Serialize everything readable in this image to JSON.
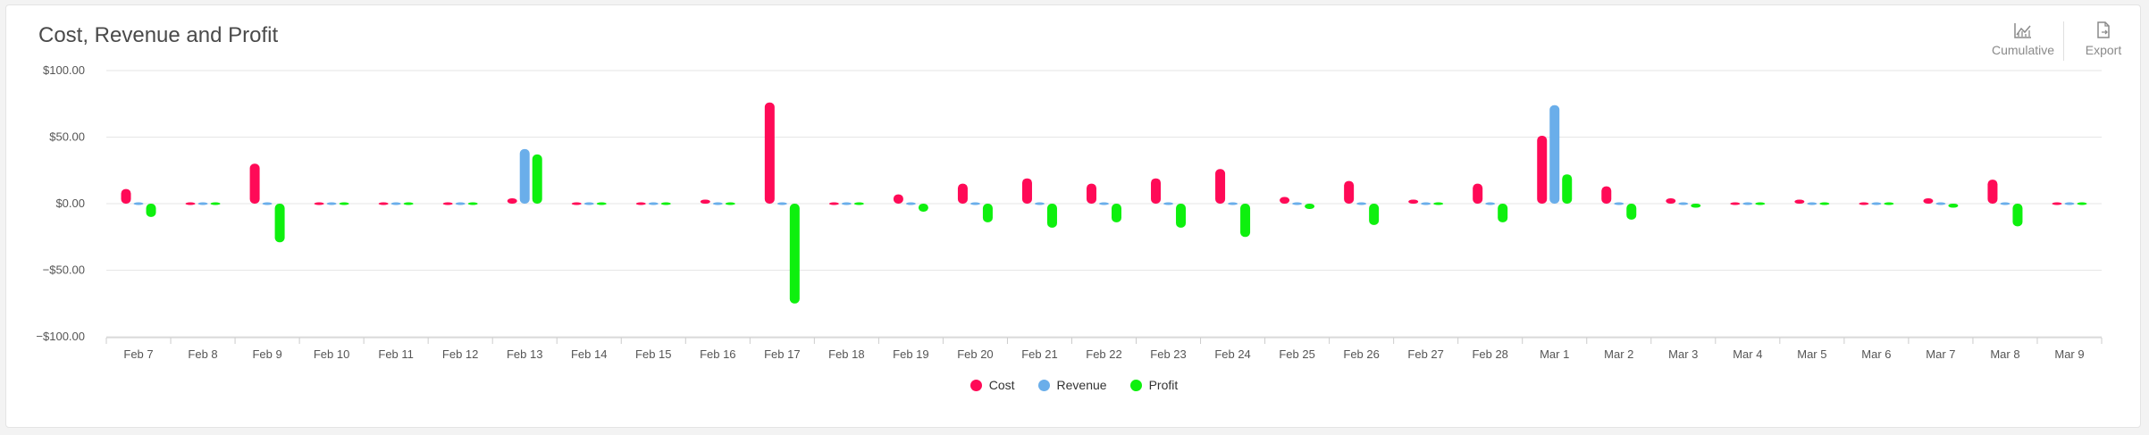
{
  "header": {
    "title": "Cost, Revenue and Profit",
    "cumulative_label": "Cumulative",
    "export_label": "Export"
  },
  "icons": {
    "cumulative": "line-chart-icon",
    "export": "file-export-icon"
  },
  "colors": {
    "cost": "#ff0a57",
    "revenue": "#6aaeea",
    "profit": "#0ef00e"
  },
  "chart_data": {
    "type": "bar",
    "title": "Cost, Revenue and Profit",
    "xlabel": "",
    "ylabel": "",
    "ylim": [
      -100,
      100
    ],
    "yticks": [
      100,
      50,
      0,
      -50,
      -100
    ],
    "ytick_labels": [
      "$100.00",
      "$50.00",
      "$0.00",
      "−$50.00",
      "−$100.00"
    ],
    "grid": true,
    "legend_position": "bottom-center",
    "categories": [
      "Feb 7",
      "Feb 8",
      "Feb 9",
      "Feb 10",
      "Feb 11",
      "Feb 12",
      "Feb 13",
      "Feb 14",
      "Feb 15",
      "Feb 16",
      "Feb 17",
      "Feb 18",
      "Feb 19",
      "Feb 20",
      "Feb 21",
      "Feb 22",
      "Feb 23",
      "Feb 24",
      "Feb 25",
      "Feb 26",
      "Feb 27",
      "Feb 28",
      "Mar 1",
      "Mar 2",
      "Mar 3",
      "Mar 4",
      "Mar 5",
      "Mar 6",
      "Mar 7",
      "Mar 8",
      "Mar 9"
    ],
    "series": [
      {
        "name": "Cost",
        "values": [
          11,
          1,
          30,
          1,
          1,
          1,
          4,
          1,
          1,
          3,
          76,
          1,
          7,
          15,
          19,
          15,
          19,
          26,
          5,
          17,
          3,
          15,
          51,
          13,
          4,
          1,
          3,
          1,
          4,
          18,
          1
        ]
      },
      {
        "name": "Revenue",
        "values": [
          1,
          1,
          1,
          1,
          1,
          1,
          41,
          1,
          1,
          1,
          1,
          1,
          1,
          1,
          1,
          1,
          1,
          1,
          1,
          1,
          1,
          1,
          74,
          1,
          1,
          1,
          1,
          1,
          1,
          1,
          1
        ]
      },
      {
        "name": "Profit",
        "values": [
          -10,
          1,
          -29,
          1,
          1,
          1,
          37,
          1,
          1,
          -2,
          -75,
          1,
          -6,
          -14,
          -18,
          -14,
          -18,
          -25,
          -4,
          -16,
          -2,
          -14,
          22,
          -12,
          -3,
          1,
          -2,
          -1,
          -3,
          -17,
          1
        ]
      }
    ]
  }
}
